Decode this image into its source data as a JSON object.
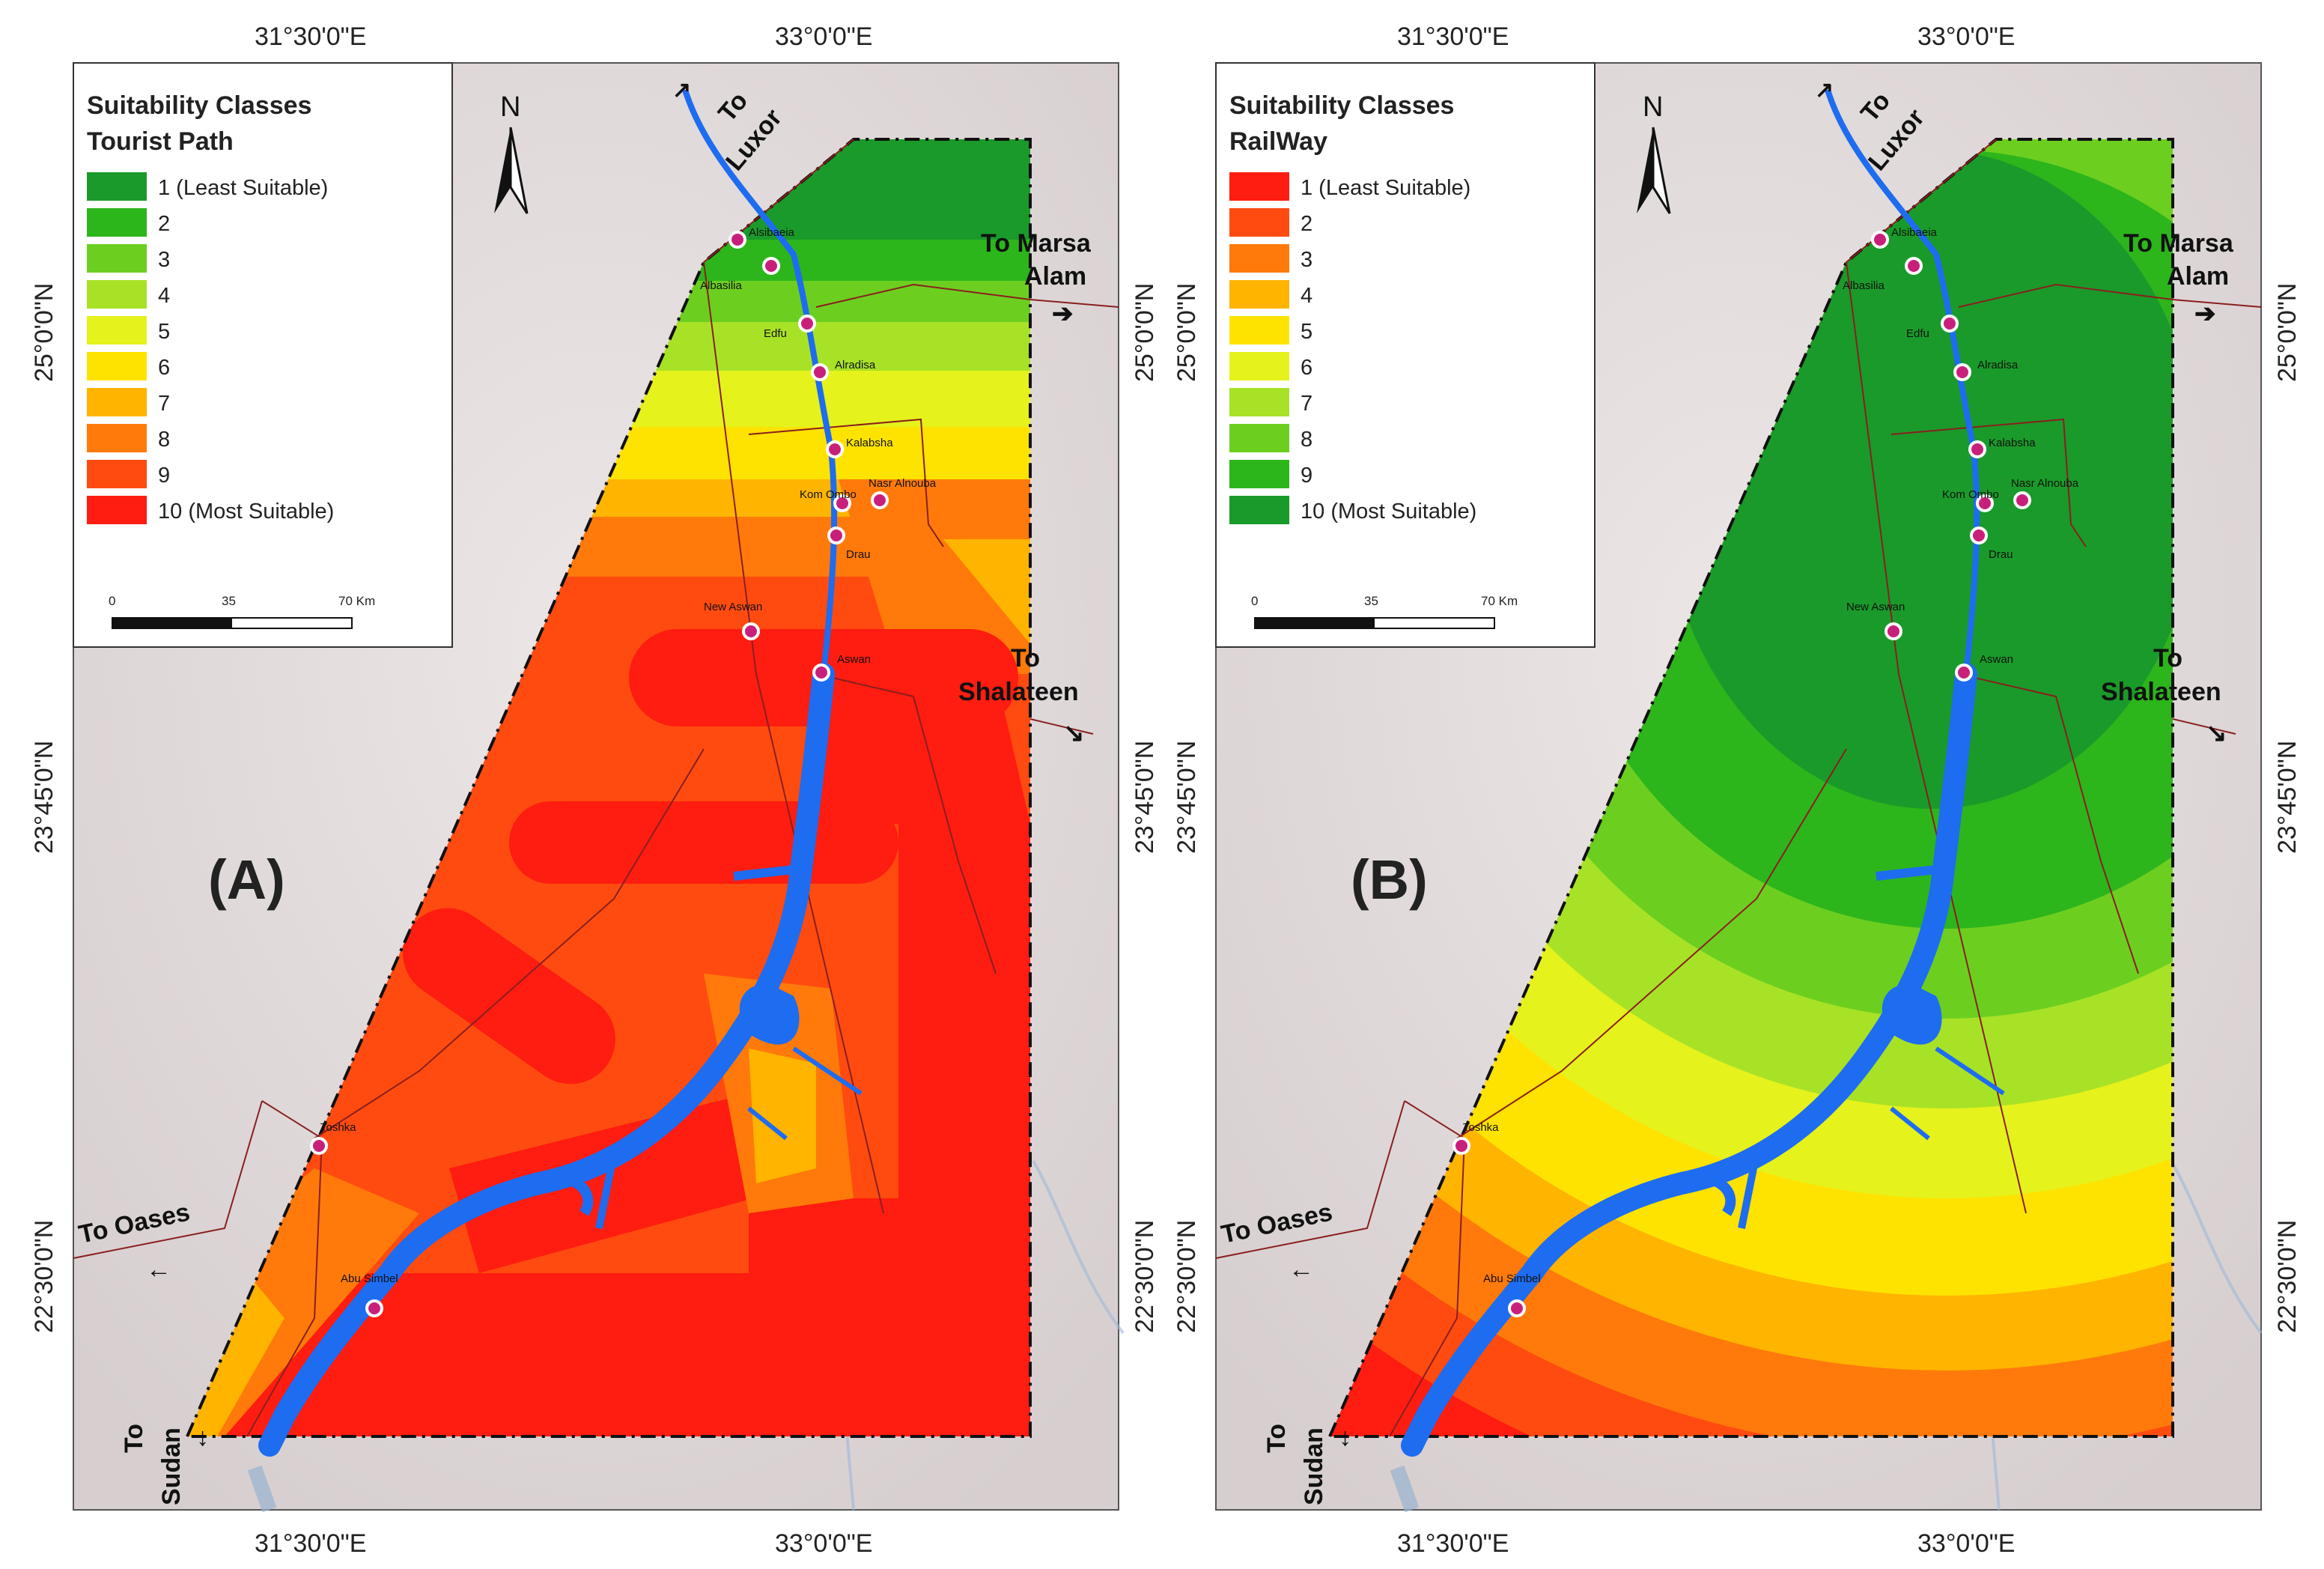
{
  "panels": [
    {
      "id": "A",
      "label": "(A)",
      "legend": {
        "title_line1": "Suitability Classes",
        "title_line2": "Tourist Path",
        "items": [
          {
            "label": "1 (Least Suitable)",
            "color": "#1a9a2a"
          },
          {
            "label": "2",
            "color": "#2db51c"
          },
          {
            "label": "3",
            "color": "#6ccf20"
          },
          {
            "label": "4",
            "color": "#a8e227"
          },
          {
            "label": "5",
            "color": "#e5f21c"
          },
          {
            "label": "6",
            "color": "#ffe300"
          },
          {
            "label": "7",
            "color": "#ffb400"
          },
          {
            "label": "8",
            "color": "#ff7a0a"
          },
          {
            "label": "9",
            "color": "#ff4b10"
          },
          {
            "label": "10 (Most Suitable)",
            "color": "#ff1c10"
          }
        ]
      }
    },
    {
      "id": "B",
      "label": "(B)",
      "legend": {
        "title_line1": "Suitability Classes",
        "title_line2": "RailWay",
        "items": [
          {
            "label": "1 (Least Suitable)",
            "color": "#ff1c10"
          },
          {
            "label": "2",
            "color": "#ff4b10"
          },
          {
            "label": "3",
            "color": "#ff7a0a"
          },
          {
            "label": "4",
            "color": "#ffb400"
          },
          {
            "label": "5",
            "color": "#ffe300"
          },
          {
            "label": "6",
            "color": "#e5f21c"
          },
          {
            "label": "7",
            "color": "#a8e227"
          },
          {
            "label": "8",
            "color": "#6ccf20"
          },
          {
            "label": "9",
            "color": "#2db51c"
          },
          {
            "label": "10 (Most Suitable)",
            "color": "#1a9a2a"
          }
        ]
      }
    }
  ],
  "scale": {
    "t0": "0",
    "t1": "35",
    "t2": "70 Km"
  },
  "north": "N",
  "axes": {
    "top_left": "31°30'0\"E",
    "top_right": "33°0'0\"E",
    "bottom_left": "31°30'0\"E",
    "bottom_right": "33°0'0\"E",
    "lat_top": "25°0'0\"N",
    "lat_mid": "23°45'0\"N",
    "lat_bot": "22°30'0\"N"
  },
  "directions": {
    "luxor": [
      "To",
      "Luxor"
    ],
    "marsa": [
      "To Marsa",
      "Alam"
    ],
    "shalateen": [
      "To",
      "Shalateen"
    ],
    "oases": "To Oases",
    "sudan": [
      "To",
      "Sudan"
    ]
  },
  "cities": [
    "Alsibaeia",
    "Albasilia",
    "Edfu",
    "Alradisa",
    "Kalabsha",
    "Kom Ombo",
    "Nasr Alnouba",
    "Drau",
    "New Aswan",
    "Aswan",
    "Toshka",
    "Abu Simbel"
  ],
  "colors": {
    "water": "#1e6cf0",
    "terrain": "#e4dcdc",
    "road": "#8a1f1f"
  }
}
